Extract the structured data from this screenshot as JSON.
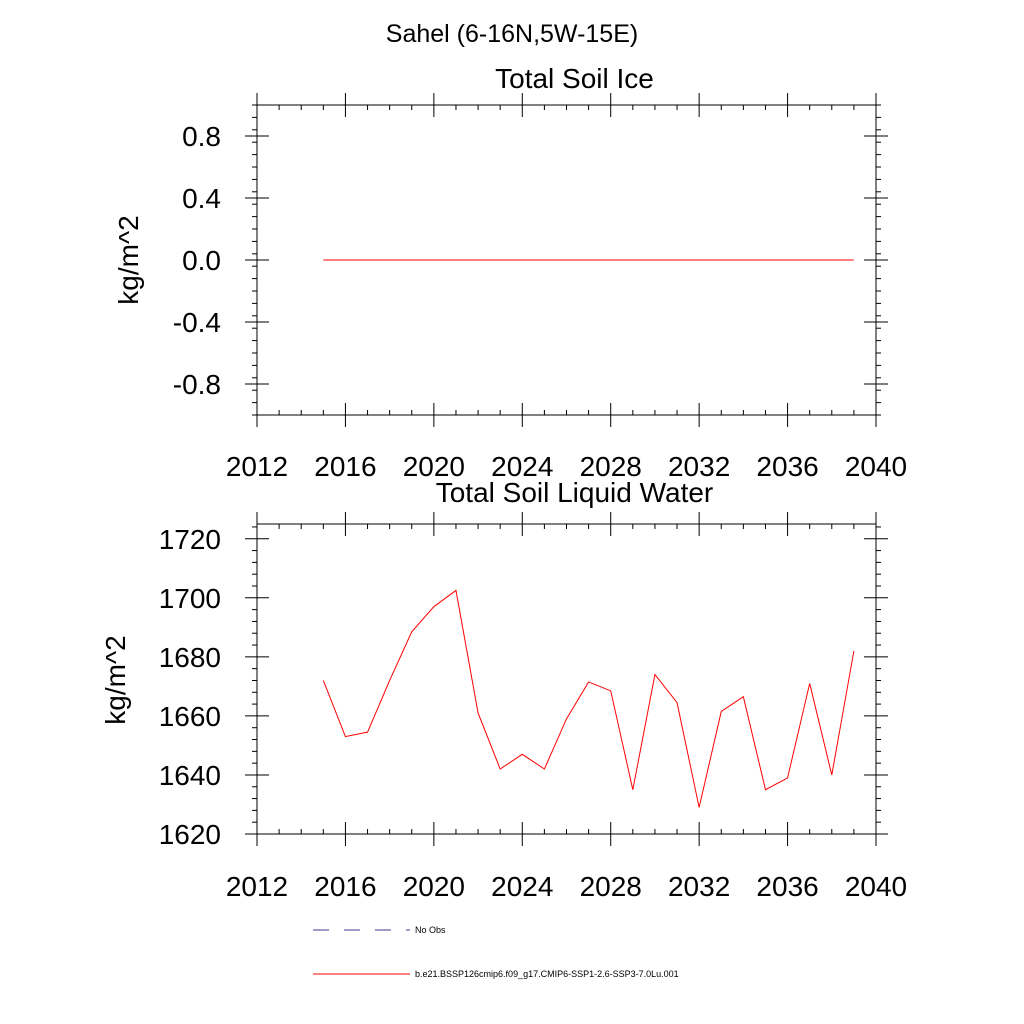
{
  "figure": {
    "title": "Sahel (6-16N,5W-15E)"
  },
  "chart_data": [
    {
      "type": "line",
      "title": "Total Soil Ice",
      "xlabel": "",
      "ylabel": "kg/m^2",
      "xlim": [
        2012,
        2040
      ],
      "ylim": [
        -1.0,
        1.0
      ],
      "xticks": [
        2012,
        2016,
        2020,
        2024,
        2028,
        2032,
        2036,
        2040
      ],
      "xtick_labels": [
        "2012",
        "2016",
        "2020",
        "2024",
        "2028",
        "2032",
        "2036",
        "2040"
      ],
      "yticks": [
        -0.8,
        -0.4,
        0.0,
        0.4,
        0.8
      ],
      "ytick_labels": [
        "-0.8",
        "-0.4",
        "0.0",
        "0.4",
        "0.8"
      ],
      "series": [
        {
          "color": "#ff0000",
          "x": [
            2015,
            2016,
            2017,
            2018,
            2019,
            2020,
            2021,
            2022,
            2023,
            2024,
            2025,
            2026,
            2027,
            2028,
            2029,
            2030,
            2031,
            2032,
            2033,
            2034,
            2035,
            2036,
            2037,
            2038,
            2039
          ],
          "y": [
            0,
            0,
            0,
            0,
            0,
            0,
            0,
            0,
            0,
            0,
            0,
            0,
            0,
            0,
            0,
            0,
            0,
            0,
            0,
            0,
            0,
            0,
            0,
            0,
            0
          ]
        }
      ]
    },
    {
      "type": "line",
      "title": "Total Soil Liquid Water",
      "xlabel": "",
      "ylabel": "kg/m^2",
      "xlim": [
        2012,
        2040
      ],
      "ylim": [
        1620,
        1725
      ],
      "xticks": [
        2012,
        2016,
        2020,
        2024,
        2028,
        2032,
        2036,
        2040
      ],
      "xtick_labels": [
        "2012",
        "2016",
        "2020",
        "2024",
        "2028",
        "2032",
        "2036",
        "2040"
      ],
      "yticks": [
        1620,
        1640,
        1660,
        1680,
        1700,
        1720
      ],
      "ytick_labels": [
        "1620",
        "1640",
        "1660",
        "1680",
        "1700",
        "1720"
      ],
      "series": [
        {
          "color": "#ff0000",
          "x": [
            2015,
            2016,
            2017,
            2018,
            2019,
            2020,
            2021,
            2022,
            2023,
            2024,
            2025,
            2026,
            2027,
            2028,
            2029,
            2030,
            2031,
            2032,
            2033,
            2034,
            2035,
            2036,
            2037,
            2038,
            2039
          ],
          "y": [
            1672,
            1653,
            1654.5,
            1672,
            1688.5,
            1697,
            1702.5,
            1661,
            1642,
            1647,
            1642,
            1659,
            1671.5,
            1668.5,
            1635,
            1674,
            1664.5,
            1629,
            1661.5,
            1666.5,
            1635,
            1639,
            1671,
            1640,
            1682
          ]
        }
      ]
    }
  ],
  "legend": {
    "placement": "bottom",
    "items": [
      {
        "label": "No Obs",
        "style": "dashed",
        "color": "#3b3b8f"
      },
      {
        "label": "b.e21.BSSP126cmip6.f09_g17.CMIP6-SSP1-2.6-SSP3-7.0Lu.001",
        "style": "solid",
        "color": "#ff0000"
      }
    ]
  }
}
